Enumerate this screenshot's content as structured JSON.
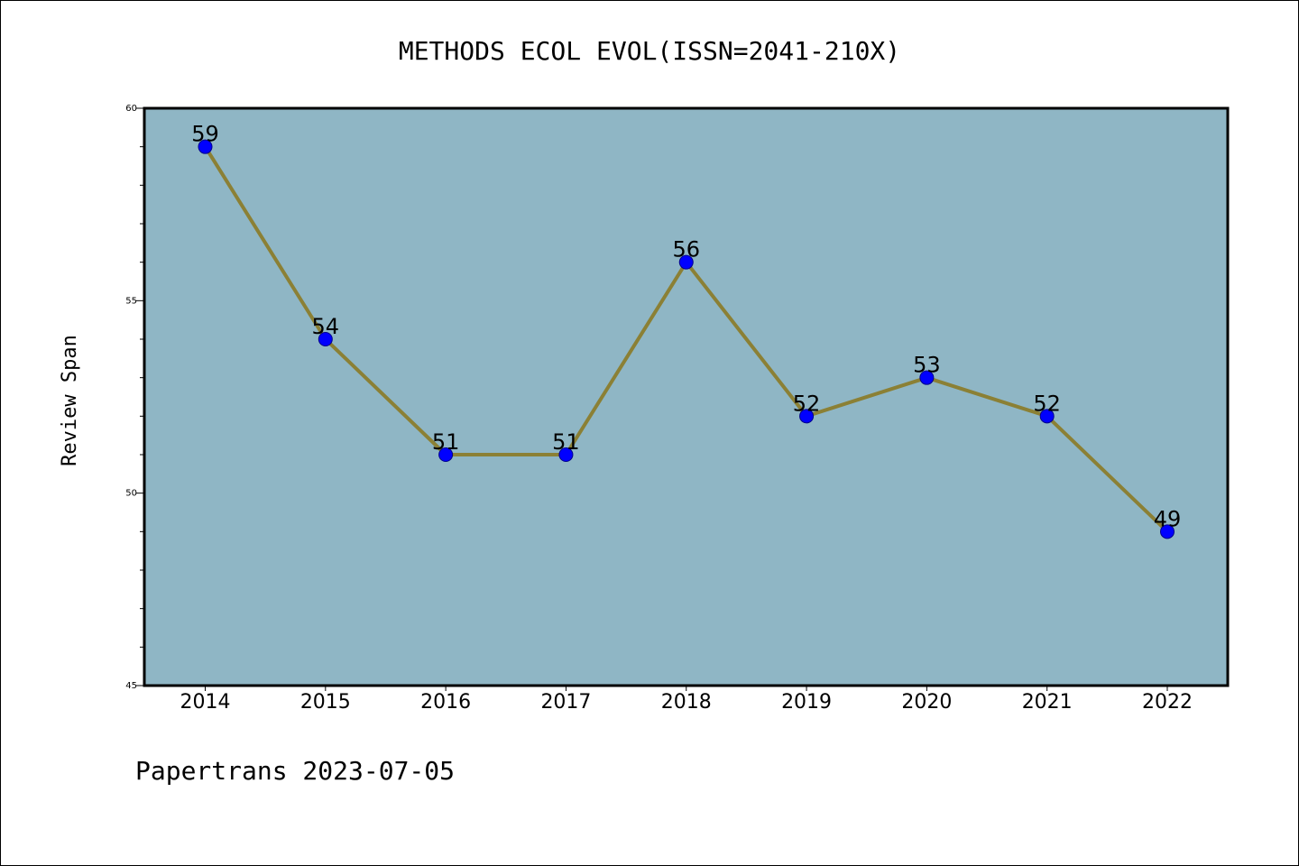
{
  "footer": {
    "text": "Papertrans 2023-07-05"
  },
  "colors": {
    "plot_background": "#8fb6c5",
    "line": "#8b8035",
    "marker": "#0000ff",
    "marker_edge": "#00008b"
  },
  "chart_data": {
    "type": "line",
    "title": "METHODS ECOL EVOL(ISSN=2041-210X)",
    "xlabel": "",
    "ylabel": "Review Span",
    "categories": [
      "2014",
      "2015",
      "2016",
      "2017",
      "2018",
      "2019",
      "2020",
      "2021",
      "2022"
    ],
    "series": [
      {
        "values": [
          59,
          54,
          51,
          51,
          56,
          52,
          53,
          52,
          49
        ]
      }
    ],
    "ylim": [
      45,
      60
    ],
    "yticks": [
      45,
      50,
      55,
      60
    ],
    "data_labels": [
      "59",
      "54",
      "51",
      "51",
      "56",
      "52",
      "53",
      "52",
      "49"
    ],
    "grid": false,
    "legend": "none"
  }
}
